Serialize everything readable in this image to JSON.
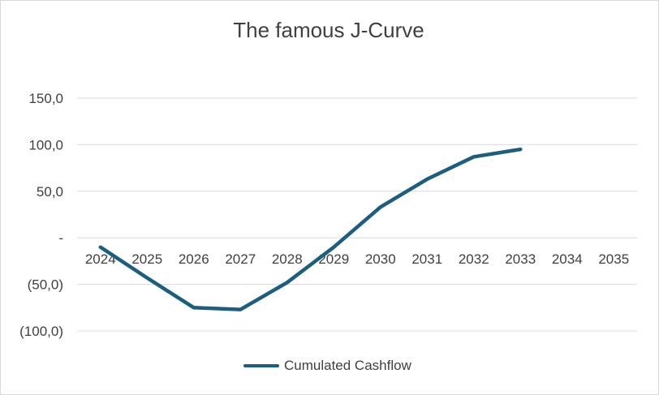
{
  "chart_data": {
    "type": "line",
    "title": "The famous J-Curve",
    "xlabel": "",
    "ylabel": "",
    "categories": [
      "2024",
      "2025",
      "2026",
      "2027",
      "2028",
      "2029",
      "2030",
      "2031",
      "2032",
      "2033",
      "2034",
      "2035"
    ],
    "series": [
      {
        "name": "Cumulated Cashflow",
        "color": "#1b5e7f",
        "values": [
          -10,
          -43,
          -75,
          -77,
          -48,
          -10,
          33,
          63,
          87,
          95,
          null,
          null
        ]
      }
    ],
    "ylim": [
      -100,
      150
    ],
    "yticks": [
      150,
      100,
      50,
      0,
      -50,
      -100
    ],
    "ytick_labels": [
      "150,0",
      "100,0",
      "50,0",
      "-",
      "(50,0)",
      "(100,0)"
    ],
    "grid": true,
    "legend": "bottom"
  }
}
